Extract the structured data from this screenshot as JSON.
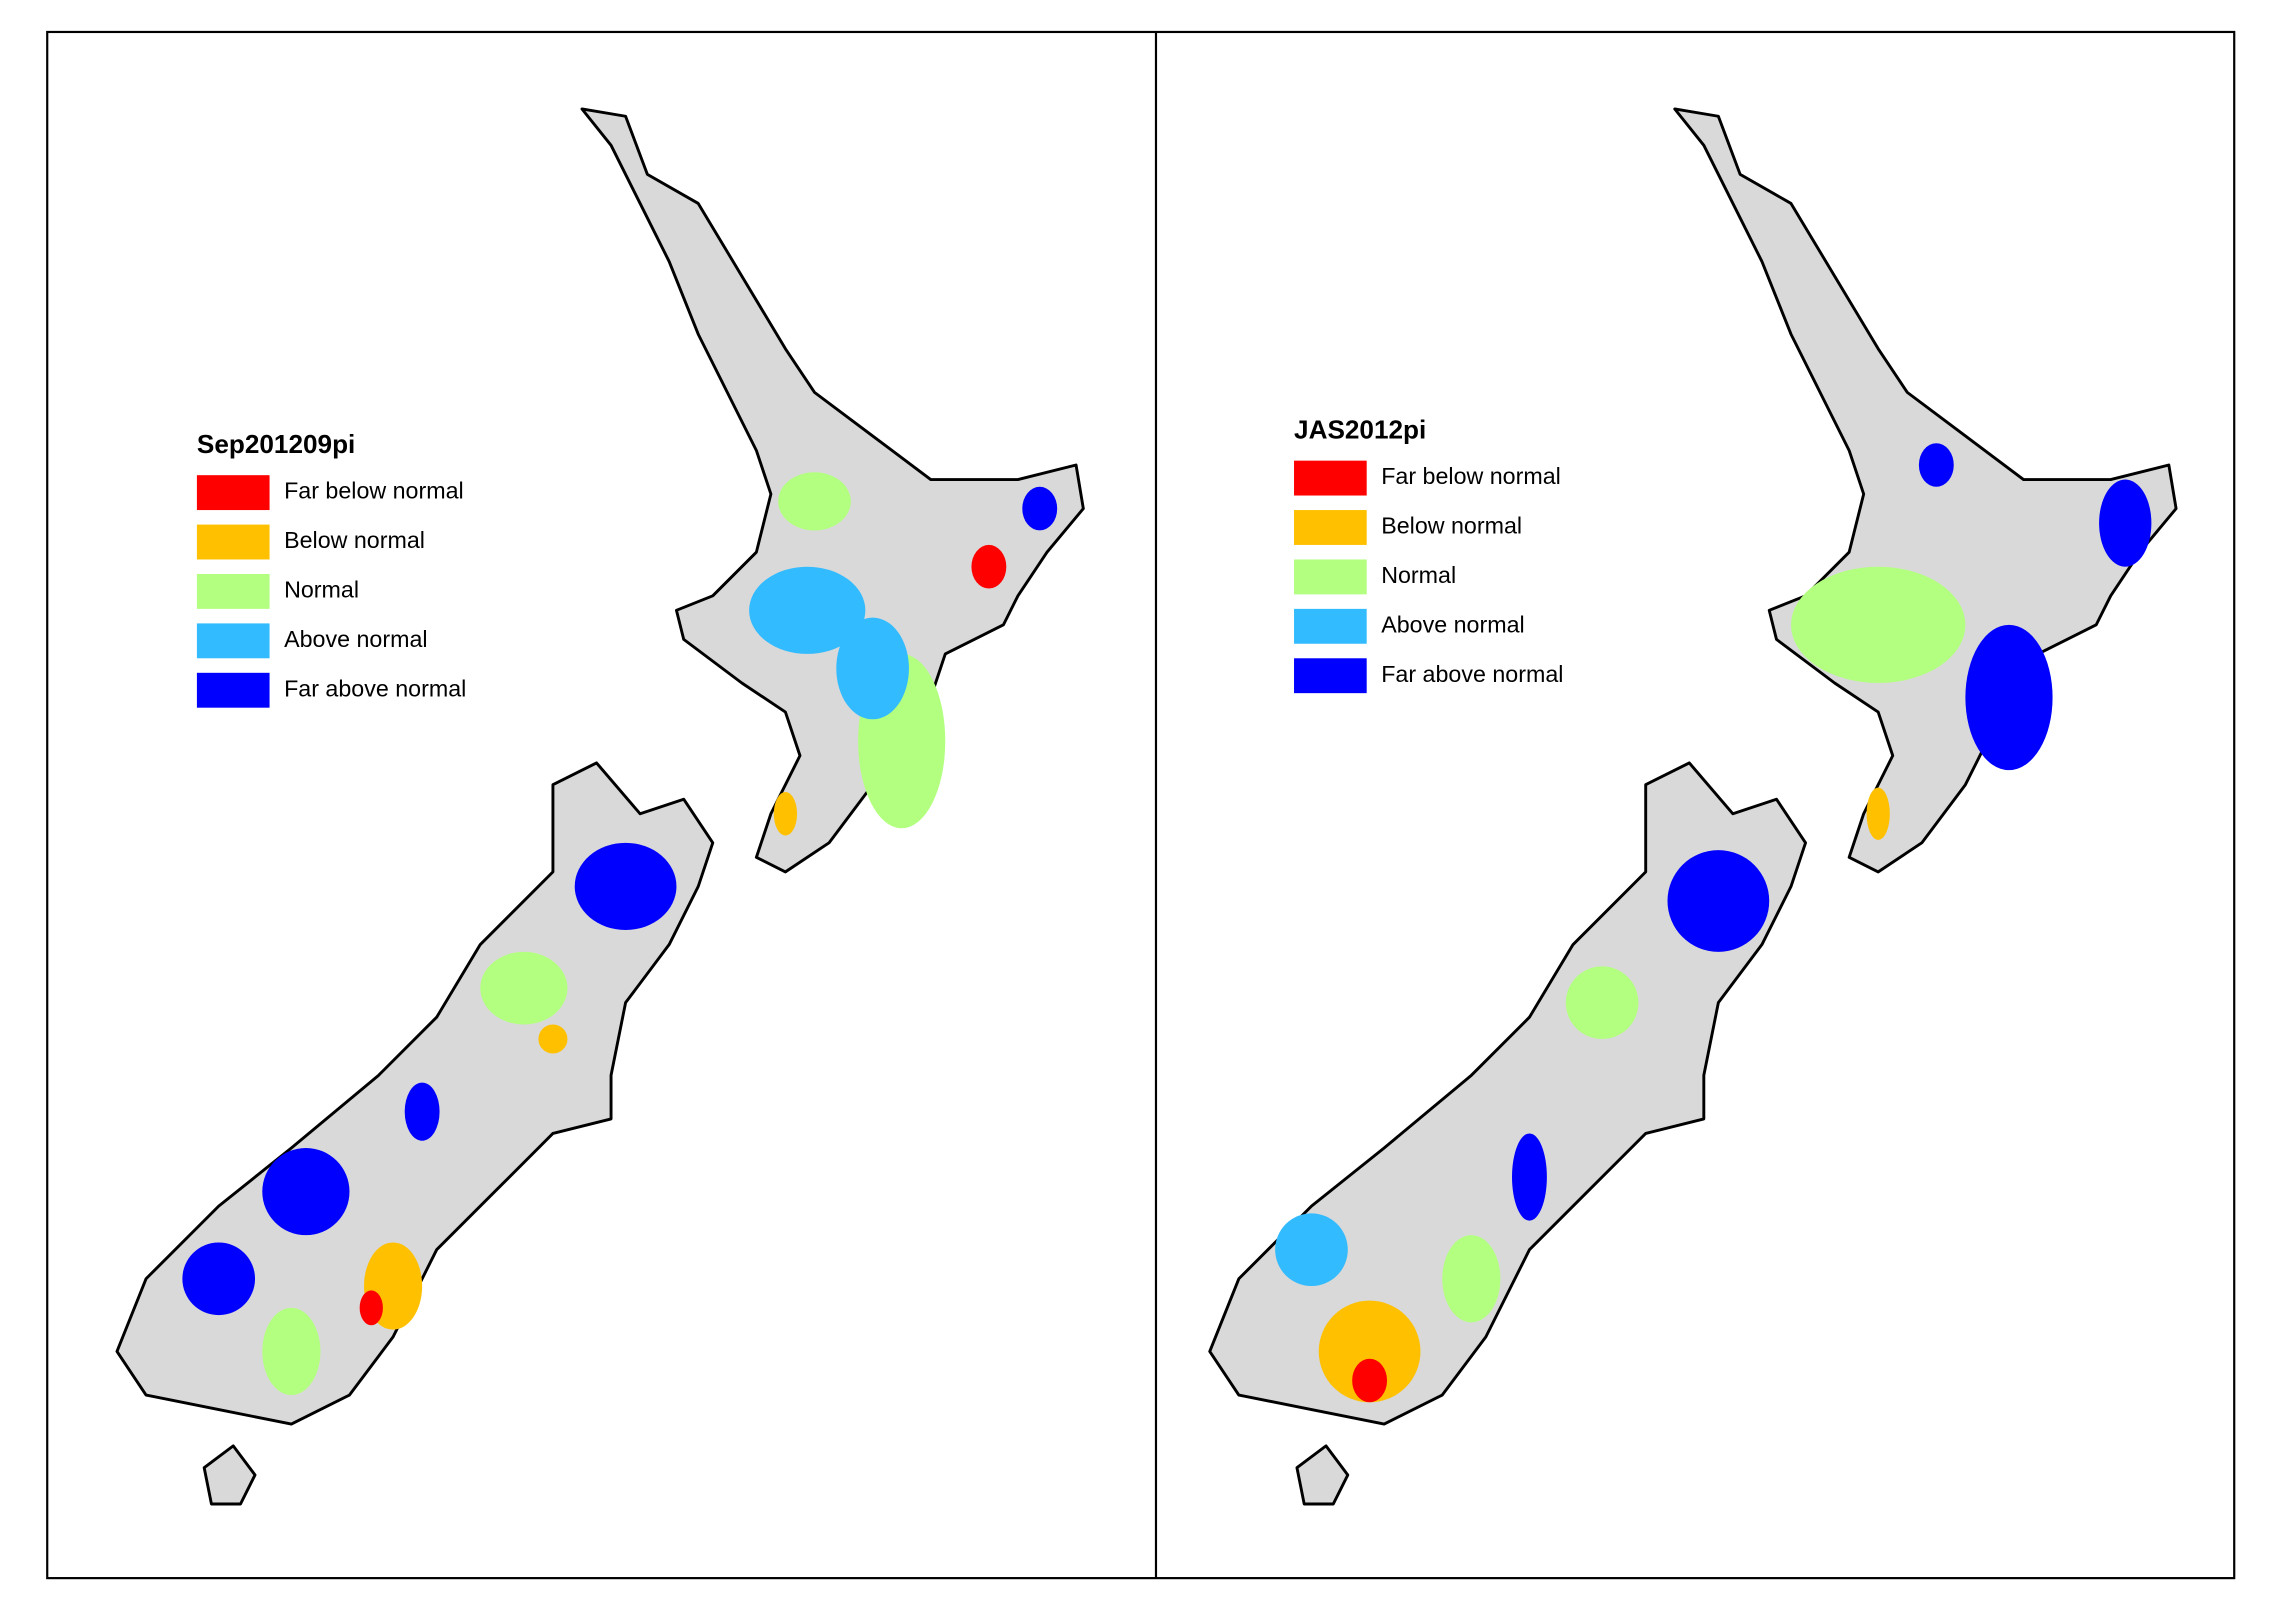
{
  "panels": [
    {
      "title": "Sep201209pi",
      "legend": [
        {
          "label": "Far below normal",
          "color": "#ff0000"
        },
        {
          "label": "Below normal",
          "color": "#ffc000"
        },
        {
          "label": "Normal",
          "color": "#b3ff80"
        },
        {
          "label": "Above normal",
          "color": "#33bbff"
        },
        {
          "label": "Far above normal",
          "color": "#0000ff"
        }
      ]
    },
    {
      "title": "JAS2012pi",
      "legend": [
        {
          "label": "Far below normal",
          "color": "#ff0000"
        },
        {
          "label": "Below normal",
          "color": "#ffc000"
        },
        {
          "label": "Normal",
          "color": "#b3ff80"
        },
        {
          "label": "Above normal",
          "color": "#33bbff"
        },
        {
          "label": "Far above normal",
          "color": "#0000ff"
        }
      ]
    }
  ]
}
